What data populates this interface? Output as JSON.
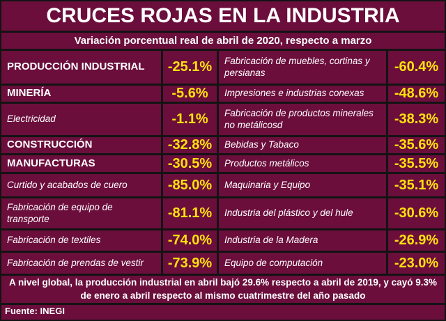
{
  "poster": {
    "title": "CRUCES ROJAS EN LA INDUSTRIA",
    "subtitle": "Variación porcentual real de abril de 2020, respecto a marzo",
    "footnote": "A nivel global, la producción industrial en abril bajó 29.6% respecto a abril de 2019, y cayó 9.3% de enero a abril respecto al mismo cuatrimestre del año pasado",
    "source": "Fuente: INEGI"
  },
  "colors": {
    "background": "#6B0E3C",
    "gridline": "#131313",
    "label_text": "#FFFFFF",
    "value_text": "#FFE10C"
  },
  "rows": [
    {
      "left": {
        "label": "PRODUCCIÓN INDUSTRIAL",
        "value": "-25.1%"
      },
      "right": {
        "label": "Fabricación de muebles, cortinas y persianas",
        "value": "-60.4%"
      }
    },
    {
      "left": {
        "label": "MINERÍA",
        "value": "-5.6%"
      },
      "right": {
        "label": "Impresiones e industrias conexas",
        "value": "-48.6%"
      }
    },
    {
      "left": {
        "label": "Electricidad",
        "value": "-1.1%"
      },
      "right": {
        "label": "Fabricación de productos minerales no metálicosd",
        "value": "-38.3%"
      }
    },
    {
      "left": {
        "label": "CONSTRUCCIÓN",
        "value": "-32.8%"
      },
      "right": {
        "label": "Bebidas y Tabaco",
        "value": "-35.6%"
      }
    },
    {
      "left": {
        "label": "MANUFACTURAS",
        "value": "-30.5%"
      },
      "right": {
        "label": "Productos metálicos",
        "value": "-35.5%"
      }
    },
    {
      "left": {
        "label": "Curtido y acabados de cuero",
        "value": "-85.0%"
      },
      "right": {
        "label": "Maquinaria y Equipo",
        "value": "-35.1%"
      }
    },
    {
      "left": {
        "label": "Fabricación de equipo de transporte",
        "value": "-81.1%"
      },
      "right": {
        "label": "Industria del plástico y del hule",
        "value": "-30.6%"
      }
    },
    {
      "left": {
        "label": "Fabricación de textiles",
        "value": "-74.0%"
      },
      "right": {
        "label": "Industria de la Madera",
        "value": "-26.9%"
      }
    },
    {
      "left": {
        "label": "Fabricación de prendas de vestir",
        "value": "-73.9%"
      },
      "right": {
        "label": "Equipo de computación",
        "value": "-23.0%"
      }
    }
  ],
  "chart_data": {
    "type": "table",
    "title": "CRUCES ROJAS EN LA INDUSTRIA",
    "subtitle": "Variación porcentual real de abril de 2020, respecto a marzo",
    "unit": "% real change, April 2020 vs March 2020",
    "entries": [
      {
        "label": "PRODUCCIÓN INDUSTRIAL",
        "value": -25.1
      },
      {
        "label": "MINERÍA",
        "value": -5.6
      },
      {
        "label": "Electricidad",
        "value": -1.1
      },
      {
        "label": "CONSTRUCCIÓN",
        "value": -32.8
      },
      {
        "label": "MANUFACTURAS",
        "value": -30.5
      },
      {
        "label": "Curtido y acabados de cuero",
        "value": -85.0
      },
      {
        "label": "Fabricación de equipo de transporte",
        "value": -81.1
      },
      {
        "label": "Fabricación de textiles",
        "value": -74.0
      },
      {
        "label": "Fabricación de prendas de vestir",
        "value": -73.9
      },
      {
        "label": "Fabricación de muebles, cortinas y persianas",
        "value": -60.4
      },
      {
        "label": "Impresiones e industrias conexas",
        "value": -48.6
      },
      {
        "label": "Fabricación de productos minerales no metálicosd",
        "value": -38.3
      },
      {
        "label": "Bebidas y Tabaco",
        "value": -35.6
      },
      {
        "label": "Productos metálicos",
        "value": -35.5
      },
      {
        "label": "Maquinaria y Equipo",
        "value": -35.1
      },
      {
        "label": "Industria del plástico y del hule",
        "value": -30.6
      },
      {
        "label": "Industria de la Madera",
        "value": -26.9
      },
      {
        "label": "Equipo de computación",
        "value": -23.0
      }
    ],
    "footnote": "A nivel global, la producción industrial en abril bajó 29.6% respecto a abril de 2019, y cayó 9.3% de enero a abril respecto al mismo cuatrimestre del año pasado",
    "source": "Fuente: INEGI"
  }
}
